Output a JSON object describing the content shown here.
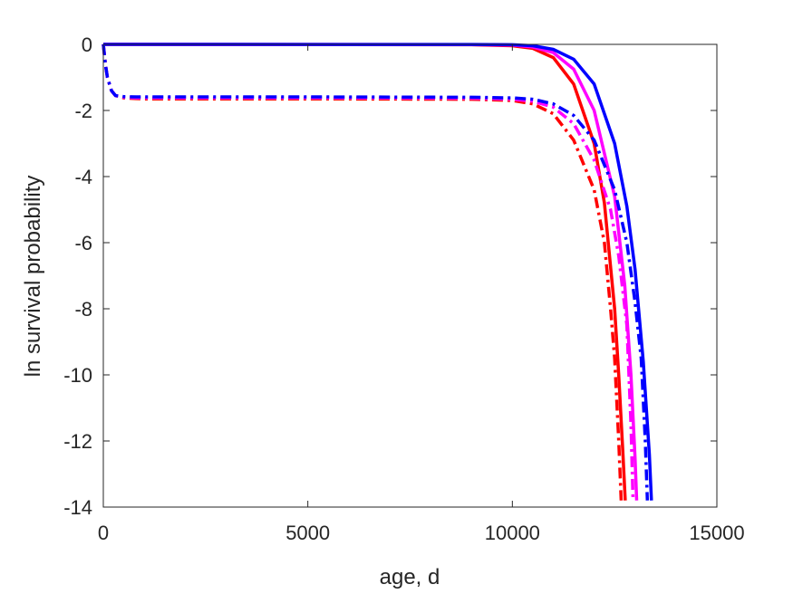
{
  "chart_data": {
    "type": "line",
    "xlabel": "age, d",
    "ylabel": "ln survival probability",
    "xlim": [
      0,
      15000
    ],
    "ylim": [
      -14,
      0
    ],
    "xticks": [
      0,
      5000,
      10000,
      15000
    ],
    "yticks": [
      0,
      -2,
      -4,
      -6,
      -8,
      -10,
      -12,
      -14
    ],
    "xtick_labels": [
      "0",
      "5000",
      "10000",
      "15000"
    ],
    "ytick_labels": [
      "0",
      "-2",
      "-4",
      "-6",
      "-8",
      "-10",
      "-12",
      "-14"
    ],
    "grid": false,
    "box": true,
    "series": [
      {
        "color": "#ff0000",
        "style": "solid",
        "x": [
          0,
          9000,
          10000,
          10500,
          11000,
          11500,
          12000,
          12250,
          12500,
          12600,
          12700,
          12760
        ],
        "y": [
          0,
          -0.01,
          -0.04,
          -0.12,
          -0.4,
          -1.2,
          -3.0,
          -4.8,
          -8.0,
          -10.0,
          -12.3,
          -13.8
        ]
      },
      {
        "color": "#ff00ff",
        "style": "solid",
        "x": [
          0,
          9000,
          10000,
          10500,
          11000,
          11500,
          12000,
          12500,
          12750,
          12900,
          13000,
          13040
        ],
        "y": [
          0,
          -0.005,
          -0.02,
          -0.08,
          -0.25,
          -0.75,
          -2.0,
          -4.6,
          -7.3,
          -10.0,
          -12.5,
          -13.8
        ]
      },
      {
        "color": "#0000ff",
        "style": "solid",
        "x": [
          0,
          9000,
          10000,
          10500,
          11000,
          11500,
          12000,
          12500,
          12800,
          13000,
          13200,
          13350,
          13400
        ],
        "y": [
          0,
          -0.003,
          -0.01,
          -0.04,
          -0.15,
          -0.45,
          -1.2,
          -3.0,
          -4.9,
          -6.8,
          -9.6,
          -12.4,
          -13.8
        ]
      },
      {
        "color": "#ff0000",
        "style": "dashdot",
        "x": [
          0,
          50,
          100,
          200,
          300,
          500,
          800,
          1000,
          5000,
          9000,
          10000,
          10500,
          11000,
          11500,
          12000,
          12250,
          12400,
          12500,
          12600,
          12660
        ],
        "y": [
          0,
          -0.6,
          -1.0,
          -1.4,
          -1.55,
          -1.62,
          -1.64,
          -1.65,
          -1.65,
          -1.66,
          -1.7,
          -1.8,
          -2.1,
          -2.9,
          -4.4,
          -6.0,
          -8.0,
          -9.5,
          -12.0,
          -13.8
        ]
      },
      {
        "color": "#ff00ff",
        "style": "dashdot",
        "x": [
          0,
          50,
          100,
          200,
          300,
          500,
          800,
          1000,
          5000,
          9000,
          10000,
          10500,
          11000,
          11500,
          12000,
          12400,
          12600,
          12800,
          12900,
          12950
        ],
        "y": [
          0,
          -0.6,
          -1.0,
          -1.4,
          -1.55,
          -1.6,
          -1.62,
          -1.62,
          -1.62,
          -1.63,
          -1.66,
          -1.72,
          -1.9,
          -2.4,
          -3.5,
          -5.0,
          -6.4,
          -8.5,
          -11.5,
          -13.8
        ]
      },
      {
        "color": "#0000ff",
        "style": "dashdot",
        "x": [
          0,
          50,
          100,
          200,
          300,
          500,
          800,
          1000,
          5000,
          9000,
          10000,
          10500,
          11000,
          11500,
          12000,
          12500,
          12800,
          13000,
          13150,
          13250,
          13300
        ],
        "y": [
          0,
          -0.6,
          -1.0,
          -1.4,
          -1.55,
          -1.58,
          -1.59,
          -1.59,
          -1.59,
          -1.6,
          -1.62,
          -1.66,
          -1.8,
          -2.15,
          -2.9,
          -4.4,
          -6.0,
          -7.8,
          -9.5,
          -12.0,
          -13.8
        ]
      }
    ]
  }
}
